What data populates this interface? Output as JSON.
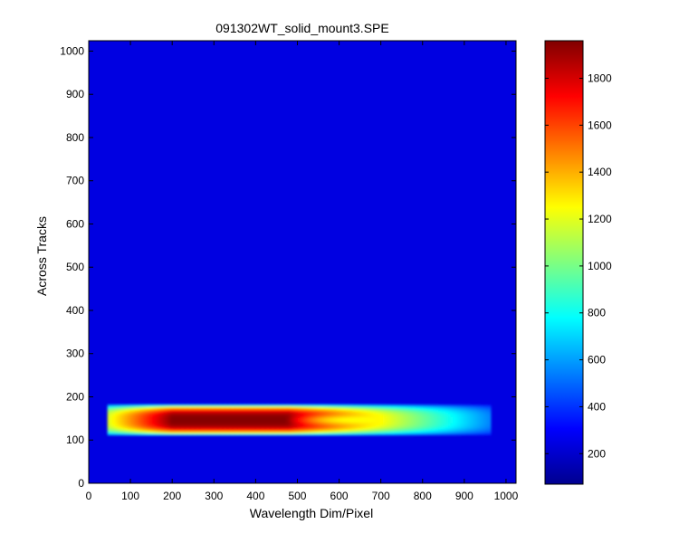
{
  "chart_data": {
    "type": "heatmap",
    "title": "091302WT_solid_mount3.SPE",
    "xlabel": "Wavelength Dim/Pixel",
    "ylabel": "Across Tracks",
    "xlim": [
      0,
      1024
    ],
    "ylim": [
      0,
      1024
    ],
    "xticks": [
      "0",
      "100",
      "200",
      "300",
      "400",
      "500",
      "600",
      "700",
      "800",
      "900",
      "1000"
    ],
    "yticks": [
      "0",
      "100",
      "200",
      "300",
      "400",
      "500",
      "600",
      "700",
      "800",
      "900",
      "1000"
    ],
    "colorbar": {
      "colormap": "jet",
      "range": [
        70,
        1960
      ],
      "ticks": [
        "200",
        "400",
        "600",
        "800",
        "1000",
        "1200",
        "1400",
        "1600",
        "1800"
      ]
    },
    "background_level": 250,
    "band": {
      "x_range": [
        45,
        960
      ],
      "y_range": [
        115,
        180
      ],
      "peak_value": 1950,
      "peak_x": [
        250,
        450
      ]
    }
  }
}
